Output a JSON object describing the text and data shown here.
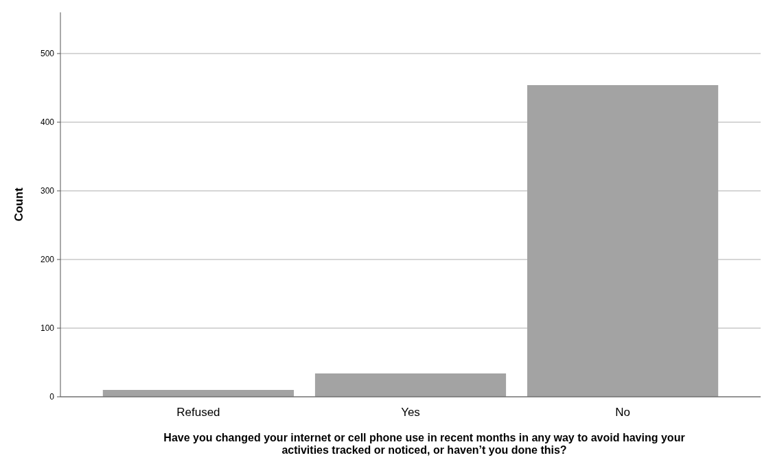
{
  "chart_data": {
    "type": "bar",
    "xlabel": "Have you changed your internet or cell phone use in recent months in any way to avoid having your activities tracked or noticed, or haven’t you done this?",
    "ylabel": "Count",
    "categories": [
      "Refused",
      "Yes",
      "No"
    ],
    "values": [
      10,
      34,
      454
    ],
    "color": "#a3a3a3",
    "ylim": [
      0,
      560
    ],
    "yticks": [
      0,
      100,
      200,
      300,
      400,
      500
    ],
    "grid": "y"
  }
}
